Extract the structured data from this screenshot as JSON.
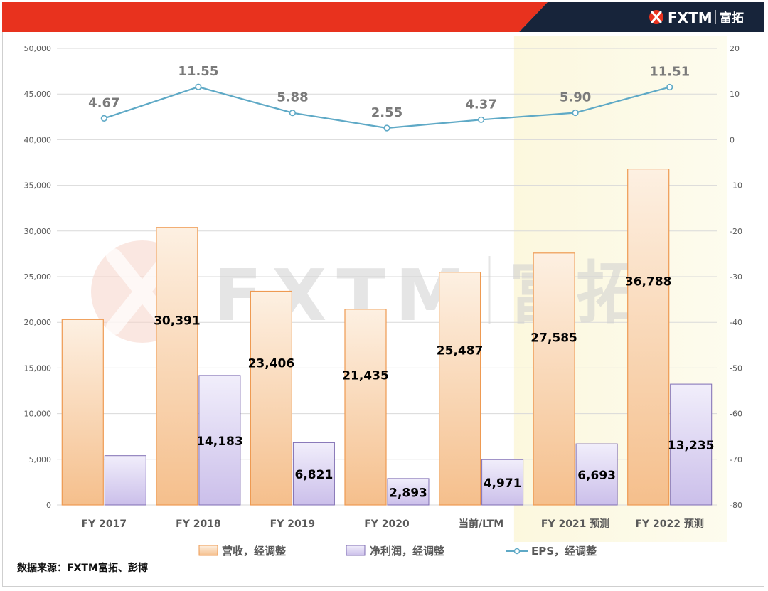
{
  "brand": {
    "logo_text": "FXTM",
    "logo_cn": "富拓",
    "watermark_text": "FXTM",
    "watermark_cn": "富拓",
    "bar_color": "#e8321e"
  },
  "source_note": "数据来源：FXTM富拓、彭博",
  "chart_data": {
    "type": "bar",
    "categories": [
      "FY 2017",
      "FY 2018",
      "FY 2019",
      "FY 2020",
      "当前/LTM",
      "FY 2021 预测",
      "FY 2022 预测"
    ],
    "series": [
      {
        "name": "营收，经调整",
        "kind": "bar",
        "axis": "left",
        "values": [
          20300,
          30391,
          23406,
          21435,
          25487,
          27585,
          36788
        ],
        "data_labels": [
          "",
          "30,391",
          "23,406",
          "21,435",
          "25,487",
          "27,585",
          "36,788"
        ],
        "color": "#f5c08f"
      },
      {
        "name": "净利润，经调整",
        "kind": "bar",
        "axis": "left",
        "values": [
          5400,
          14183,
          6821,
          2893,
          4971,
          6693,
          13235
        ],
        "data_labels": [
          "",
          "14,183",
          "6,821",
          "2,893",
          "4,971",
          "6,693",
          "13,235"
        ],
        "color": "#cfc4ec"
      },
      {
        "name": "EPS，经调整",
        "kind": "line",
        "axis": "right",
        "values": [
          4.67,
          11.55,
          5.88,
          2.55,
          4.37,
          5.9,
          11.51
        ],
        "data_labels": [
          "4.67",
          "11.55",
          "5.88",
          "2.55",
          "4.37",
          "5.90",
          "11.51"
        ],
        "color": "#5ea9c6"
      }
    ],
    "y_left": {
      "min": 0,
      "max": 50000,
      "ticks": [
        "0",
        "5,000",
        "10,000",
        "15,000",
        "20,000",
        "25,000",
        "30,000",
        "35,000",
        "40,000",
        "45,000",
        "50,000"
      ]
    },
    "y_right": {
      "min": -80,
      "max": 20,
      "ticks": [
        "-80",
        "-70",
        "-60",
        "-50",
        "-40",
        "-30",
        "-20",
        "-10",
        "0",
        "10",
        "20"
      ]
    },
    "grid": true,
    "legend_position": "bottom",
    "highlight_categories": [
      "FY 2021 预测",
      "FY 2022 预测"
    ]
  }
}
